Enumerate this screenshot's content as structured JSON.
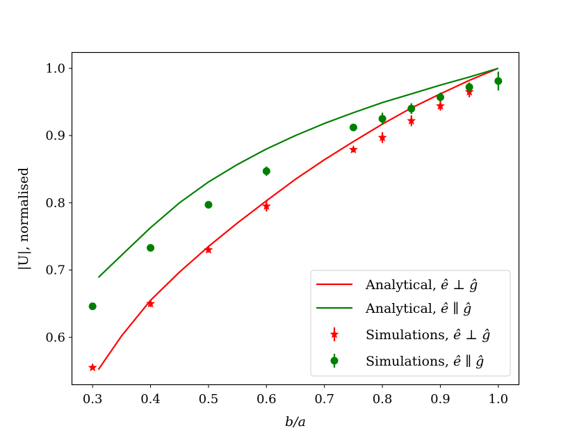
{
  "chart_data": {
    "type": "line",
    "title": "",
    "xlabel": "b/a",
    "ylabel": "|U|, normalised",
    "xlim": [
      0.265,
      1.035
    ],
    "ylim": [
      0.53,
      1.023
    ],
    "xticks": [
      0.3,
      0.4,
      0.5,
      0.6,
      0.7,
      0.8,
      0.9,
      1.0
    ],
    "xtick_labels": [
      "0.3",
      "0.4",
      "0.5",
      "0.6",
      "0.7",
      "0.8",
      "0.9",
      "1.0"
    ],
    "yticks": [
      0.6,
      0.7,
      0.8,
      0.9,
      1.0
    ],
    "ytick_labels": [
      "0.6",
      "0.7",
      "0.8",
      "0.9",
      "1.0"
    ],
    "grid": false,
    "legend_position": "bottom-right",
    "series": [
      {
        "name": "Analytical, ê ⊥ ĝ",
        "kind": "line",
        "color": "#ff0000",
        "x": [
          0.31,
          0.35,
          0.4,
          0.45,
          0.5,
          0.55,
          0.6,
          0.65,
          0.7,
          0.75,
          0.8,
          0.85,
          0.9,
          0.95,
          1.0
        ],
        "y": [
          0.552,
          0.602,
          0.655,
          0.697,
          0.735,
          0.77,
          0.803,
          0.835,
          0.864,
          0.891,
          0.917,
          0.941,
          0.962,
          0.982,
          1.0
        ]
      },
      {
        "name": "Analytical, ê ∥ ĝ",
        "kind": "line",
        "color": "#008000",
        "x": [
          0.31,
          0.35,
          0.4,
          0.45,
          0.5,
          0.55,
          0.6,
          0.65,
          0.7,
          0.75,
          0.8,
          0.85,
          0.9,
          0.95,
          1.0
        ],
        "y": [
          0.689,
          0.722,
          0.763,
          0.8,
          0.831,
          0.857,
          0.88,
          0.9,
          0.918,
          0.934,
          0.949,
          0.962,
          0.975,
          0.987,
          1.0
        ]
      },
      {
        "name": "Simulations, ê ⊥ ĝ",
        "kind": "scatter",
        "marker": "star",
        "color": "#ff0000",
        "x": [
          0.3,
          0.4,
          0.5,
          0.6,
          0.75,
          0.8,
          0.85,
          0.9,
          0.95
        ],
        "y": [
          0.555,
          0.65,
          0.73,
          0.795,
          0.879,
          0.897,
          0.922,
          0.944,
          0.965
        ],
        "yerr": [
          0.002,
          0.005,
          0.004,
          0.008,
          0.004,
          0.008,
          0.008,
          0.007,
          0.008
        ]
      },
      {
        "name": "Simulations, ê ∥ ĝ",
        "kind": "scatter",
        "marker": "circle",
        "color": "#008000",
        "x": [
          0.3,
          0.4,
          0.5,
          0.6,
          0.75,
          0.8,
          0.85,
          0.9,
          0.95,
          1.0
        ],
        "y": [
          0.646,
          0.733,
          0.797,
          0.847,
          0.912,
          0.925,
          0.94,
          0.957,
          0.972,
          0.981
        ],
        "yerr": [
          0.003,
          0.003,
          0.003,
          0.007,
          0.003,
          0.009,
          0.008,
          0.007,
          0.007,
          0.014
        ]
      }
    ]
  },
  "legend": {
    "entries": [
      {
        "prefix": "Analytical, ",
        "e": "ê",
        "rel": "⊥",
        "g": "ĝ"
      },
      {
        "prefix": "Analytical, ",
        "e": "ê",
        "rel": "∥",
        "g": "ĝ"
      },
      {
        "prefix": "Simulations, ",
        "e": "ê",
        "rel": "⊥",
        "g": "ĝ"
      },
      {
        "prefix": "Simulations, ",
        "e": "ê",
        "rel": "∥",
        "g": "ĝ"
      }
    ]
  }
}
